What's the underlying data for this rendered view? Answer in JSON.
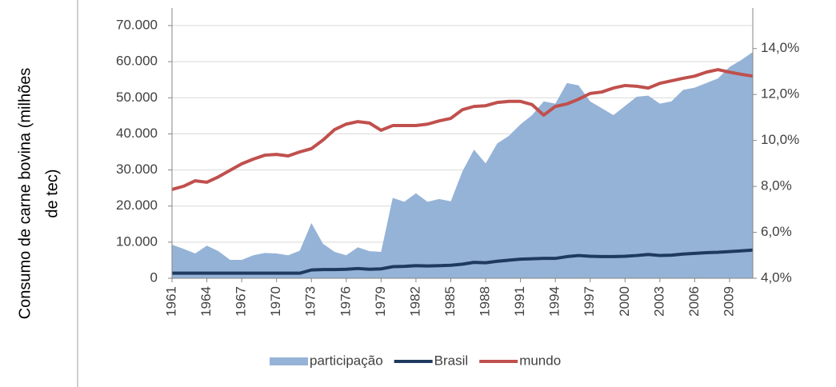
{
  "chart_data": {
    "type": "area-line",
    "ylabel": [
      "Consumo de carne bovina (milhões",
      "de tec)"
    ],
    "x": [
      1961,
      1962,
      1963,
      1964,
      1965,
      1966,
      1967,
      1968,
      1969,
      1970,
      1971,
      1972,
      1973,
      1974,
      1975,
      1976,
      1977,
      1978,
      1979,
      1980,
      1981,
      1982,
      1983,
      1984,
      1985,
      1986,
      1987,
      1988,
      1989,
      1990,
      1991,
      1992,
      1993,
      1994,
      1995,
      1996,
      1997,
      1998,
      1999,
      2000,
      2001,
      2002,
      2003,
      2004,
      2005,
      2006,
      2007,
      2008,
      2009,
      2010,
      2011
    ],
    "xlim": [
      1961,
      2011
    ],
    "xticks": [
      1961,
      1964,
      1967,
      1970,
      1973,
      1976,
      1979,
      1982,
      1985,
      1988,
      1991,
      1994,
      1997,
      2000,
      2003,
      2006,
      2009
    ],
    "ylim": [
      0,
      70000
    ],
    "yticks": [
      0,
      {
        "value": 10000,
        "label": "10.000"
      },
      {
        "value": 20000,
        "label": "20.000"
      },
      {
        "value": 30000,
        "label": "30.000"
      },
      {
        "value": 40000,
        "label": "40.000"
      },
      {
        "value": 50000,
        "label": "50.000"
      },
      {
        "value": 60000,
        "label": "60.000"
      },
      {
        "value": 70000,
        "label": "70.000"
      }
    ],
    "y2lim": [
      4,
      15
    ],
    "y2ticks": [
      {
        "value": 4,
        "label": "4,0%"
      },
      {
        "value": 6,
        "label": "6,0%"
      },
      {
        "value": 8,
        "label": "8,0%"
      },
      {
        "value": 10,
        "label": "10,0%"
      },
      {
        "value": 12,
        "label": "12,0%"
      },
      {
        "value": 14,
        "label": "14,0%"
      }
    ],
    "grid": true,
    "legend": "bottom",
    "series": [
      {
        "name": "participação",
        "kind": "area",
        "axis": "y2",
        "color": "#95b3d7",
        "values": [
          5.46,
          5.28,
          5.08,
          5.42,
          5.18,
          4.8,
          4.8,
          5.0,
          5.1,
          5.08,
          5.0,
          5.2,
          6.4,
          5.5,
          5.15,
          5.0,
          5.35,
          5.18,
          5.15,
          7.5,
          7.33,
          7.7,
          7.33,
          7.45,
          7.35,
          8.65,
          9.6,
          9.0,
          9.87,
          10.2,
          10.7,
          11.1,
          11.7,
          11.6,
          12.5,
          12.4,
          11.7,
          11.4,
          11.1,
          11.5,
          11.9,
          11.95,
          11.6,
          11.7,
          12.2,
          12.3,
          12.5,
          12.7,
          13.2,
          13.5,
          13.85
        ]
      },
      {
        "name": "Brasil",
        "kind": "line",
        "color": "#1f3a5f",
        "values": [
          1400,
          1400,
          1400,
          1400,
          1400,
          1400,
          1400,
          1400,
          1400,
          1400,
          1400,
          1400,
          2300,
          2400,
          2400,
          2500,
          2700,
          2500,
          2600,
          3200,
          3300,
          3500,
          3400,
          3500,
          3600,
          3900,
          4400,
          4300,
          4700,
          5000,
          5300,
          5400,
          5500,
          5500,
          6000,
          6300,
          6100,
          6000,
          6000,
          6100,
          6300,
          6600,
          6300,
          6400,
          6700,
          6900,
          7100,
          7200,
          7400,
          7600,
          7800
        ]
      },
      {
        "name": "mundo",
        "kind": "line",
        "color": "#c0504d",
        "values": [
          24600,
          25500,
          27000,
          26600,
          28100,
          29900,
          31700,
          33000,
          34100,
          34300,
          33900,
          35000,
          35900,
          38300,
          41200,
          42700,
          43400,
          43000,
          41000,
          42300,
          42300,
          42300,
          42700,
          43600,
          44300,
          46700,
          47600,
          47800,
          48700,
          49000,
          49000,
          48100,
          45200,
          47600,
          48300,
          49600,
          51200,
          51600,
          52700,
          53400,
          53200,
          52700,
          54000,
          54700,
          55400,
          56000,
          57100,
          57800,
          57100,
          56500,
          56000
        ]
      }
    ]
  }
}
